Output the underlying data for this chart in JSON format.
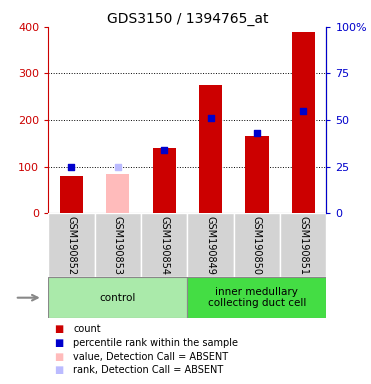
{
  "title": "GDS3150 / 1394765_at",
  "samples": [
    "GSM190852",
    "GSM190853",
    "GSM190854",
    "GSM190849",
    "GSM190850",
    "GSM190851"
  ],
  "red_bars": [
    80,
    0,
    140,
    275,
    165,
    390
  ],
  "blue_dots_pct": [
    25,
    0,
    34,
    51,
    43,
    55
  ],
  "pink_bars": [
    0,
    85,
    0,
    0,
    0,
    0
  ],
  "light_blue_dots_pct": [
    0,
    25,
    0,
    0,
    0,
    0
  ],
  "absent_mask": [
    false,
    true,
    false,
    false,
    false,
    false
  ],
  "groups": [
    {
      "label": "control",
      "start": 0,
      "end": 3,
      "color": "#aaeaaa"
    },
    {
      "label": "inner medullary\ncollecting duct cell",
      "start": 3,
      "end": 6,
      "color": "#44dd44"
    }
  ],
  "ylim_left": [
    0,
    400
  ],
  "ylim_right": [
    0,
    100
  ],
  "yticks_left": [
    0,
    100,
    200,
    300,
    400
  ],
  "yticks_right": [
    0,
    25,
    50,
    75,
    100
  ],
  "ytick_labels_right": [
    "0",
    "25",
    "50",
    "75",
    "100%"
  ],
  "left_axis_color": "#cc0000",
  "right_axis_color": "#0000cc",
  "bar_width": 0.5,
  "dot_size": 18,
  "red_color": "#cc0000",
  "blue_color": "#0000cc",
  "pink_color": "#ffbbbb",
  "light_blue_color": "#bbbbff",
  "bg_color": "#ffffff"
}
